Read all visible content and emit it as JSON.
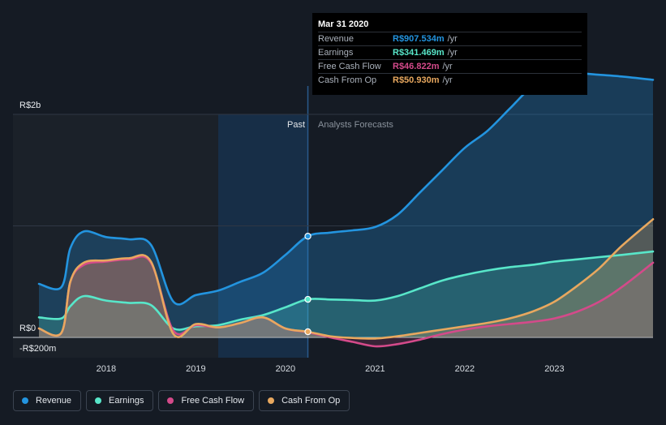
{
  "chart_data": {
    "type": "area",
    "title": "",
    "xlabel": "",
    "ylabel": "",
    "x_ticks": [
      "2018",
      "2019",
      "2020",
      "2021",
      "2022",
      "2023"
    ],
    "x_tick_values": [
      2018,
      2019,
      2020,
      2021,
      2022,
      2023
    ],
    "xlim": [
      2017.25,
      2024.1
    ],
    "ylim": [
      -200,
      2000
    ],
    "y_axis_labels": [
      {
        "value": 2000,
        "label": "R$2b"
      },
      {
        "value": 0,
        "label": "R$0"
      },
      {
        "value": -200,
        "label": "-R$200m"
      }
    ],
    "gridlines": [
      2000,
      1000,
      0
    ],
    "past_label": "Past",
    "forecast_label": "Analysts Forecasts",
    "divider_x": 2020.25,
    "past_highlight_start": 2019.25,
    "series": [
      {
        "name": "Revenue",
        "color": "#2394df",
        "x": [
          2017.25,
          2017.5,
          2017.6,
          2017.75,
          2018.0,
          2018.25,
          2018.5,
          2018.75,
          2019.0,
          2019.25,
          2019.5,
          2019.75,
          2020.0,
          2020.25,
          2020.5,
          2020.75,
          2021.0,
          2021.25,
          2021.5,
          2021.75,
          2022.0,
          2022.25,
          2022.5,
          2022.75,
          2023.0,
          2023.25,
          2023.5,
          2023.75,
          2024.1
        ],
        "values": [
          480,
          450,
          800,
          950,
          900,
          880,
          830,
          320,
          380,
          420,
          500,
          580,
          740,
          907.534,
          940,
          960,
          990,
          1100,
          1300,
          1500,
          1700,
          1850,
          2050,
          2250,
          2370,
          2370,
          2355,
          2340,
          2310
        ]
      },
      {
        "name": "Earnings",
        "color": "#58e6c9",
        "x": [
          2017.25,
          2017.5,
          2017.6,
          2017.75,
          2018.0,
          2018.25,
          2018.5,
          2018.75,
          2019.0,
          2019.25,
          2019.5,
          2019.75,
          2020.0,
          2020.25,
          2020.5,
          2020.75,
          2021.0,
          2021.25,
          2021.5,
          2021.75,
          2022.0,
          2022.25,
          2022.5,
          2022.75,
          2023.0,
          2023.25,
          2023.5,
          2023.75,
          2024.1
        ],
        "values": [
          180,
          170,
          280,
          370,
          330,
          310,
          290,
          80,
          100,
          110,
          160,
          200,
          270,
          341.469,
          340,
          335,
          330,
          370,
          440,
          510,
          560,
          600,
          630,
          650,
          680,
          700,
          720,
          740,
          770
        ]
      },
      {
        "name": "Free Cash Flow",
        "color": "#d44a8a",
        "x": [
          2017.25,
          2017.5,
          2017.6,
          2017.75,
          2018.0,
          2018.25,
          2018.5,
          2018.75,
          2019.0,
          2019.25,
          2019.5,
          2019.75,
          2020.0,
          2020.25,
          2020.5,
          2020.75,
          2021.0,
          2021.25,
          2021.5,
          2021.75,
          2022.0,
          2022.25,
          2022.5,
          2022.75,
          2023.0,
          2023.25,
          2023.5,
          2023.75,
          2024.1
        ],
        "values": [
          80,
          40,
          500,
          650,
          680,
          700,
          670,
          60,
          110,
          90,
          130,
          180,
          80,
          46.822,
          0,
          -40,
          -80,
          -60,
          -20,
          30,
          70,
          100,
          120,
          140,
          170,
          230,
          320,
          450,
          670
        ]
      },
      {
        "name": "Cash From Op",
        "color": "#e8a85f",
        "x": [
          2017.25,
          2017.5,
          2017.6,
          2017.75,
          2018.0,
          2018.25,
          2018.5,
          2018.75,
          2019.0,
          2019.25,
          2019.5,
          2019.75,
          2020.0,
          2020.25,
          2020.5,
          2020.75,
          2021.0,
          2021.25,
          2021.5,
          2021.75,
          2022.0,
          2022.25,
          2022.5,
          2022.75,
          2023.0,
          2023.25,
          2023.5,
          2023.75,
          2024.1
        ],
        "values": [
          80,
          40,
          500,
          670,
          690,
          710,
          680,
          30,
          120,
          90,
          130,
          180,
          80,
          50.93,
          10,
          -5,
          -10,
          10,
          40,
          70,
          100,
          130,
          170,
          230,
          320,
          460,
          620,
          820,
          1060
        ]
      }
    ],
    "tooltip": {
      "date": "Mar 31 2020",
      "unit": "/yr",
      "rows": [
        {
          "name": "Revenue",
          "value": "R$907.534m",
          "color": "#2394df"
        },
        {
          "name": "Earnings",
          "value": "R$341.469m",
          "color": "#58e6c9"
        },
        {
          "name": "Free Cash Flow",
          "value": "R$46.822m",
          "color": "#d44a8a"
        },
        {
          "name": "Cash From Op",
          "value": "R$50.930m",
          "color": "#e8a85f"
        }
      ]
    }
  },
  "legend": [
    {
      "label": "Revenue",
      "color": "#2394df"
    },
    {
      "label": "Earnings",
      "color": "#58e6c9"
    },
    {
      "label": "Free Cash Flow",
      "color": "#d44a8a"
    },
    {
      "label": "Cash From Op",
      "color": "#e8a85f"
    }
  ]
}
